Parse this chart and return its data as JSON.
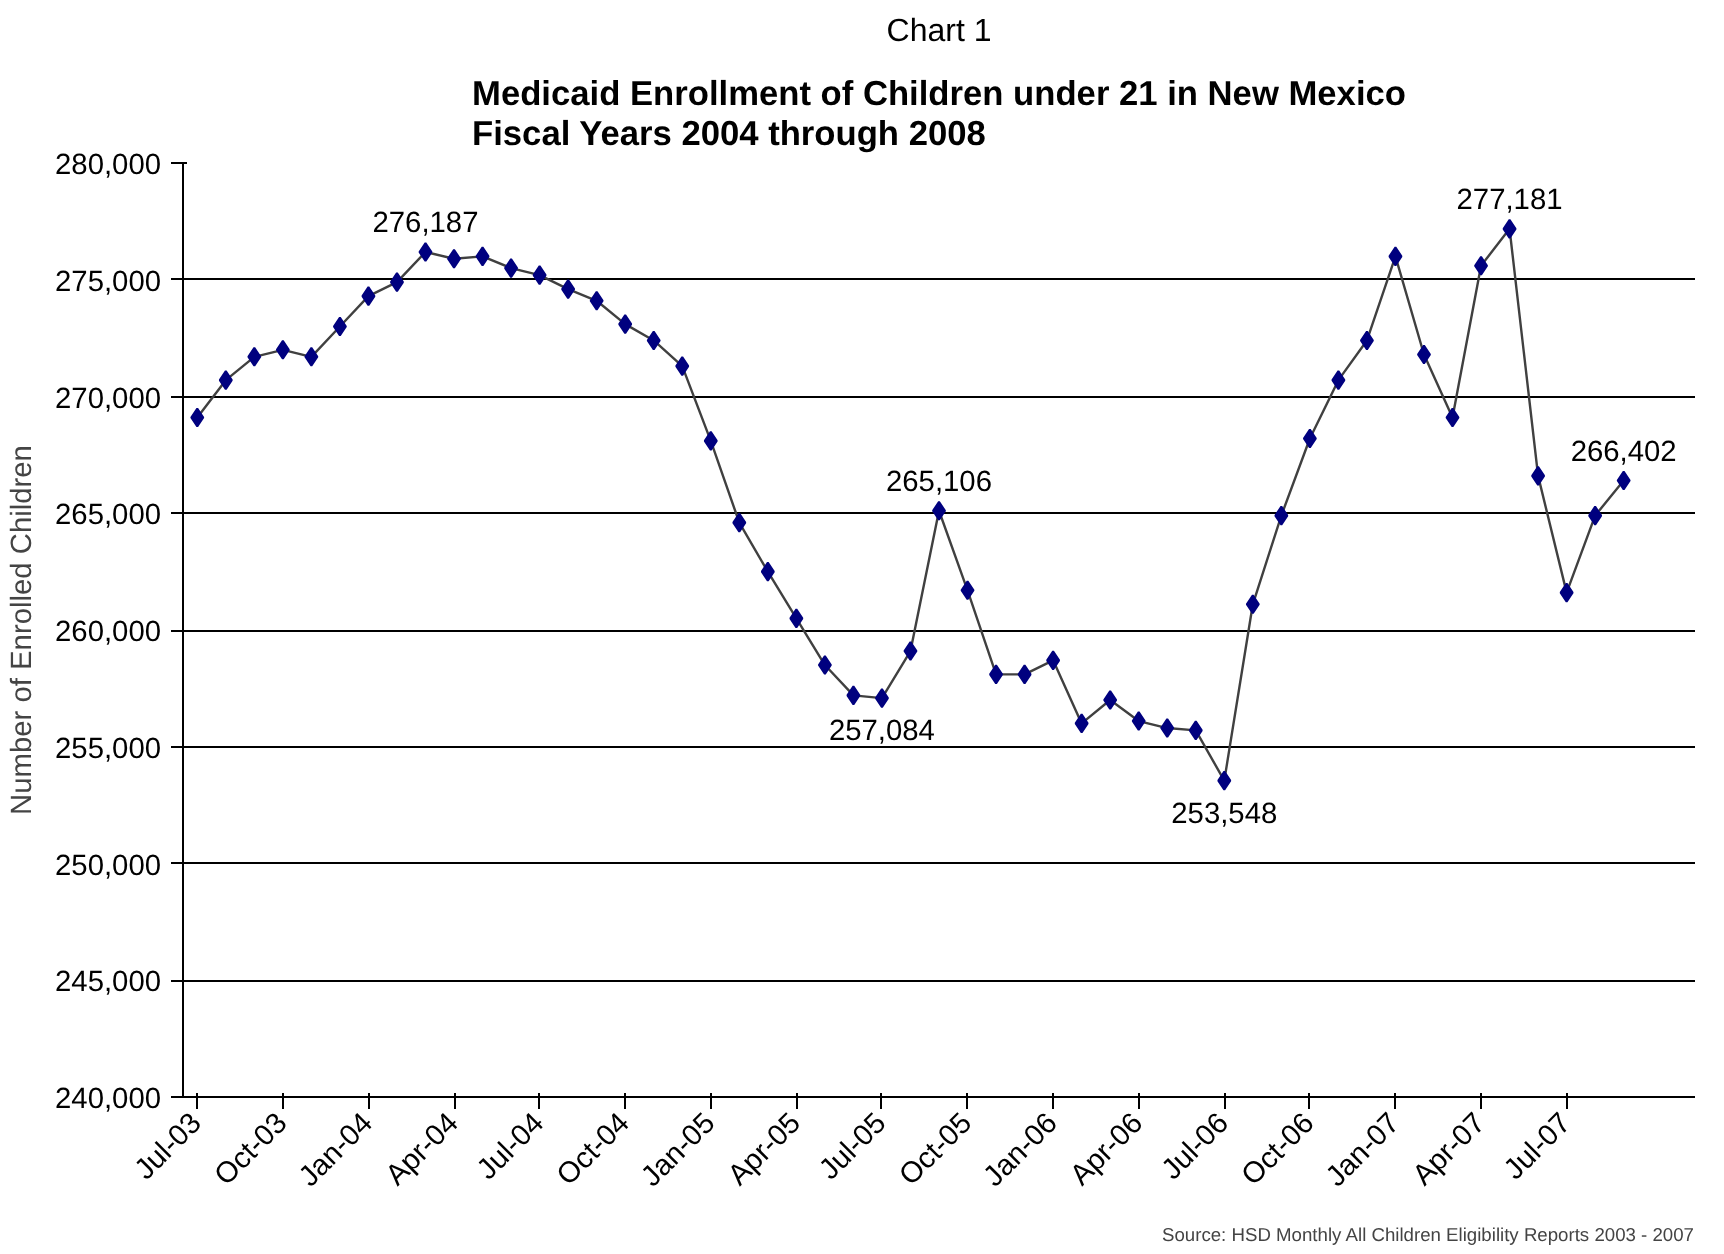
{
  "chart_data": {
    "type": "line",
    "subtitle": "Chart 1",
    "title": "Medicaid Enrollment of Children under 21 in New Mexico\nFiscal Years 2004 through 2008",
    "ylabel": "Number of Enrolled Children",
    "categories": [
      "Jul-03",
      null,
      null,
      "Oct-03",
      null,
      null,
      "Jan-04",
      null,
      null,
      "Apr-04",
      null,
      null,
      "Jul-04",
      null,
      null,
      "Oct-04",
      null,
      null,
      "Jan-05",
      null,
      null,
      "Apr-05",
      null,
      null,
      "Jul-05",
      null,
      null,
      "Oct-05",
      null,
      null,
      "Jan-06",
      null,
      null,
      "Apr-06",
      null,
      null,
      "Jul-06",
      null,
      null,
      "Oct-06",
      null,
      null,
      "Jan-07",
      null,
      null,
      "Apr-07",
      null,
      null,
      "Jul-07",
      null,
      null
    ],
    "series": [
      {
        "color": "#00007f",
        "values": [
          269100,
          270700,
          271700,
          272000,
          271700,
          273000,
          274300,
          274900,
          276187,
          275900,
          276000,
          275500,
          275200,
          274600,
          274100,
          273100,
          272400,
          271300,
          268100,
          264600,
          262500,
          260500,
          258500,
          257200,
          257084,
          259100,
          265106,
          261700,
          258100,
          258100,
          258700,
          256000,
          257000,
          256100,
          255800,
          255700,
          253548,
          261100,
          264900,
          268200,
          270700,
          272400,
          276000,
          271800,
          269100,
          275600,
          277181,
          266600,
          261600,
          264900,
          266402
        ],
        "value_labels": [
          null,
          null,
          null,
          null,
          null,
          null,
          null,
          null,
          "276,187",
          null,
          null,
          null,
          null,
          null,
          null,
          null,
          null,
          null,
          null,
          null,
          null,
          null,
          null,
          null,
          "257,084",
          null,
          "265,106",
          null,
          null,
          null,
          null,
          null,
          null,
          null,
          null,
          null,
          "253,548",
          null,
          null,
          null,
          null,
          null,
          null,
          null,
          null,
          null,
          "277,181",
          null,
          null,
          null,
          "266,402"
        ]
      }
    ],
    "ylim": [
      240000,
      280000
    ],
    "yticks": [
      {
        "value": 240000,
        "label": "240,000"
      },
      {
        "value": 245000,
        "label": "245,000"
      },
      {
        "value": 250000,
        "label": "250,000"
      },
      {
        "value": 255000,
        "label": "255,000"
      },
      {
        "value": 260000,
        "label": "260,000"
      },
      {
        "value": 265000,
        "label": "265,000"
      },
      {
        "value": 270000,
        "label": "270,000"
      },
      {
        "value": 275000,
        "label": "275,000"
      },
      {
        "value": 280000,
        "label": "280,000"
      }
    ],
    "grid": "y",
    "marker": "diamond",
    "line_style": "solid",
    "annotations": [
      "Source: HSD Monthly All Children Eligibility Reports 2003 - 2007"
    ]
  }
}
